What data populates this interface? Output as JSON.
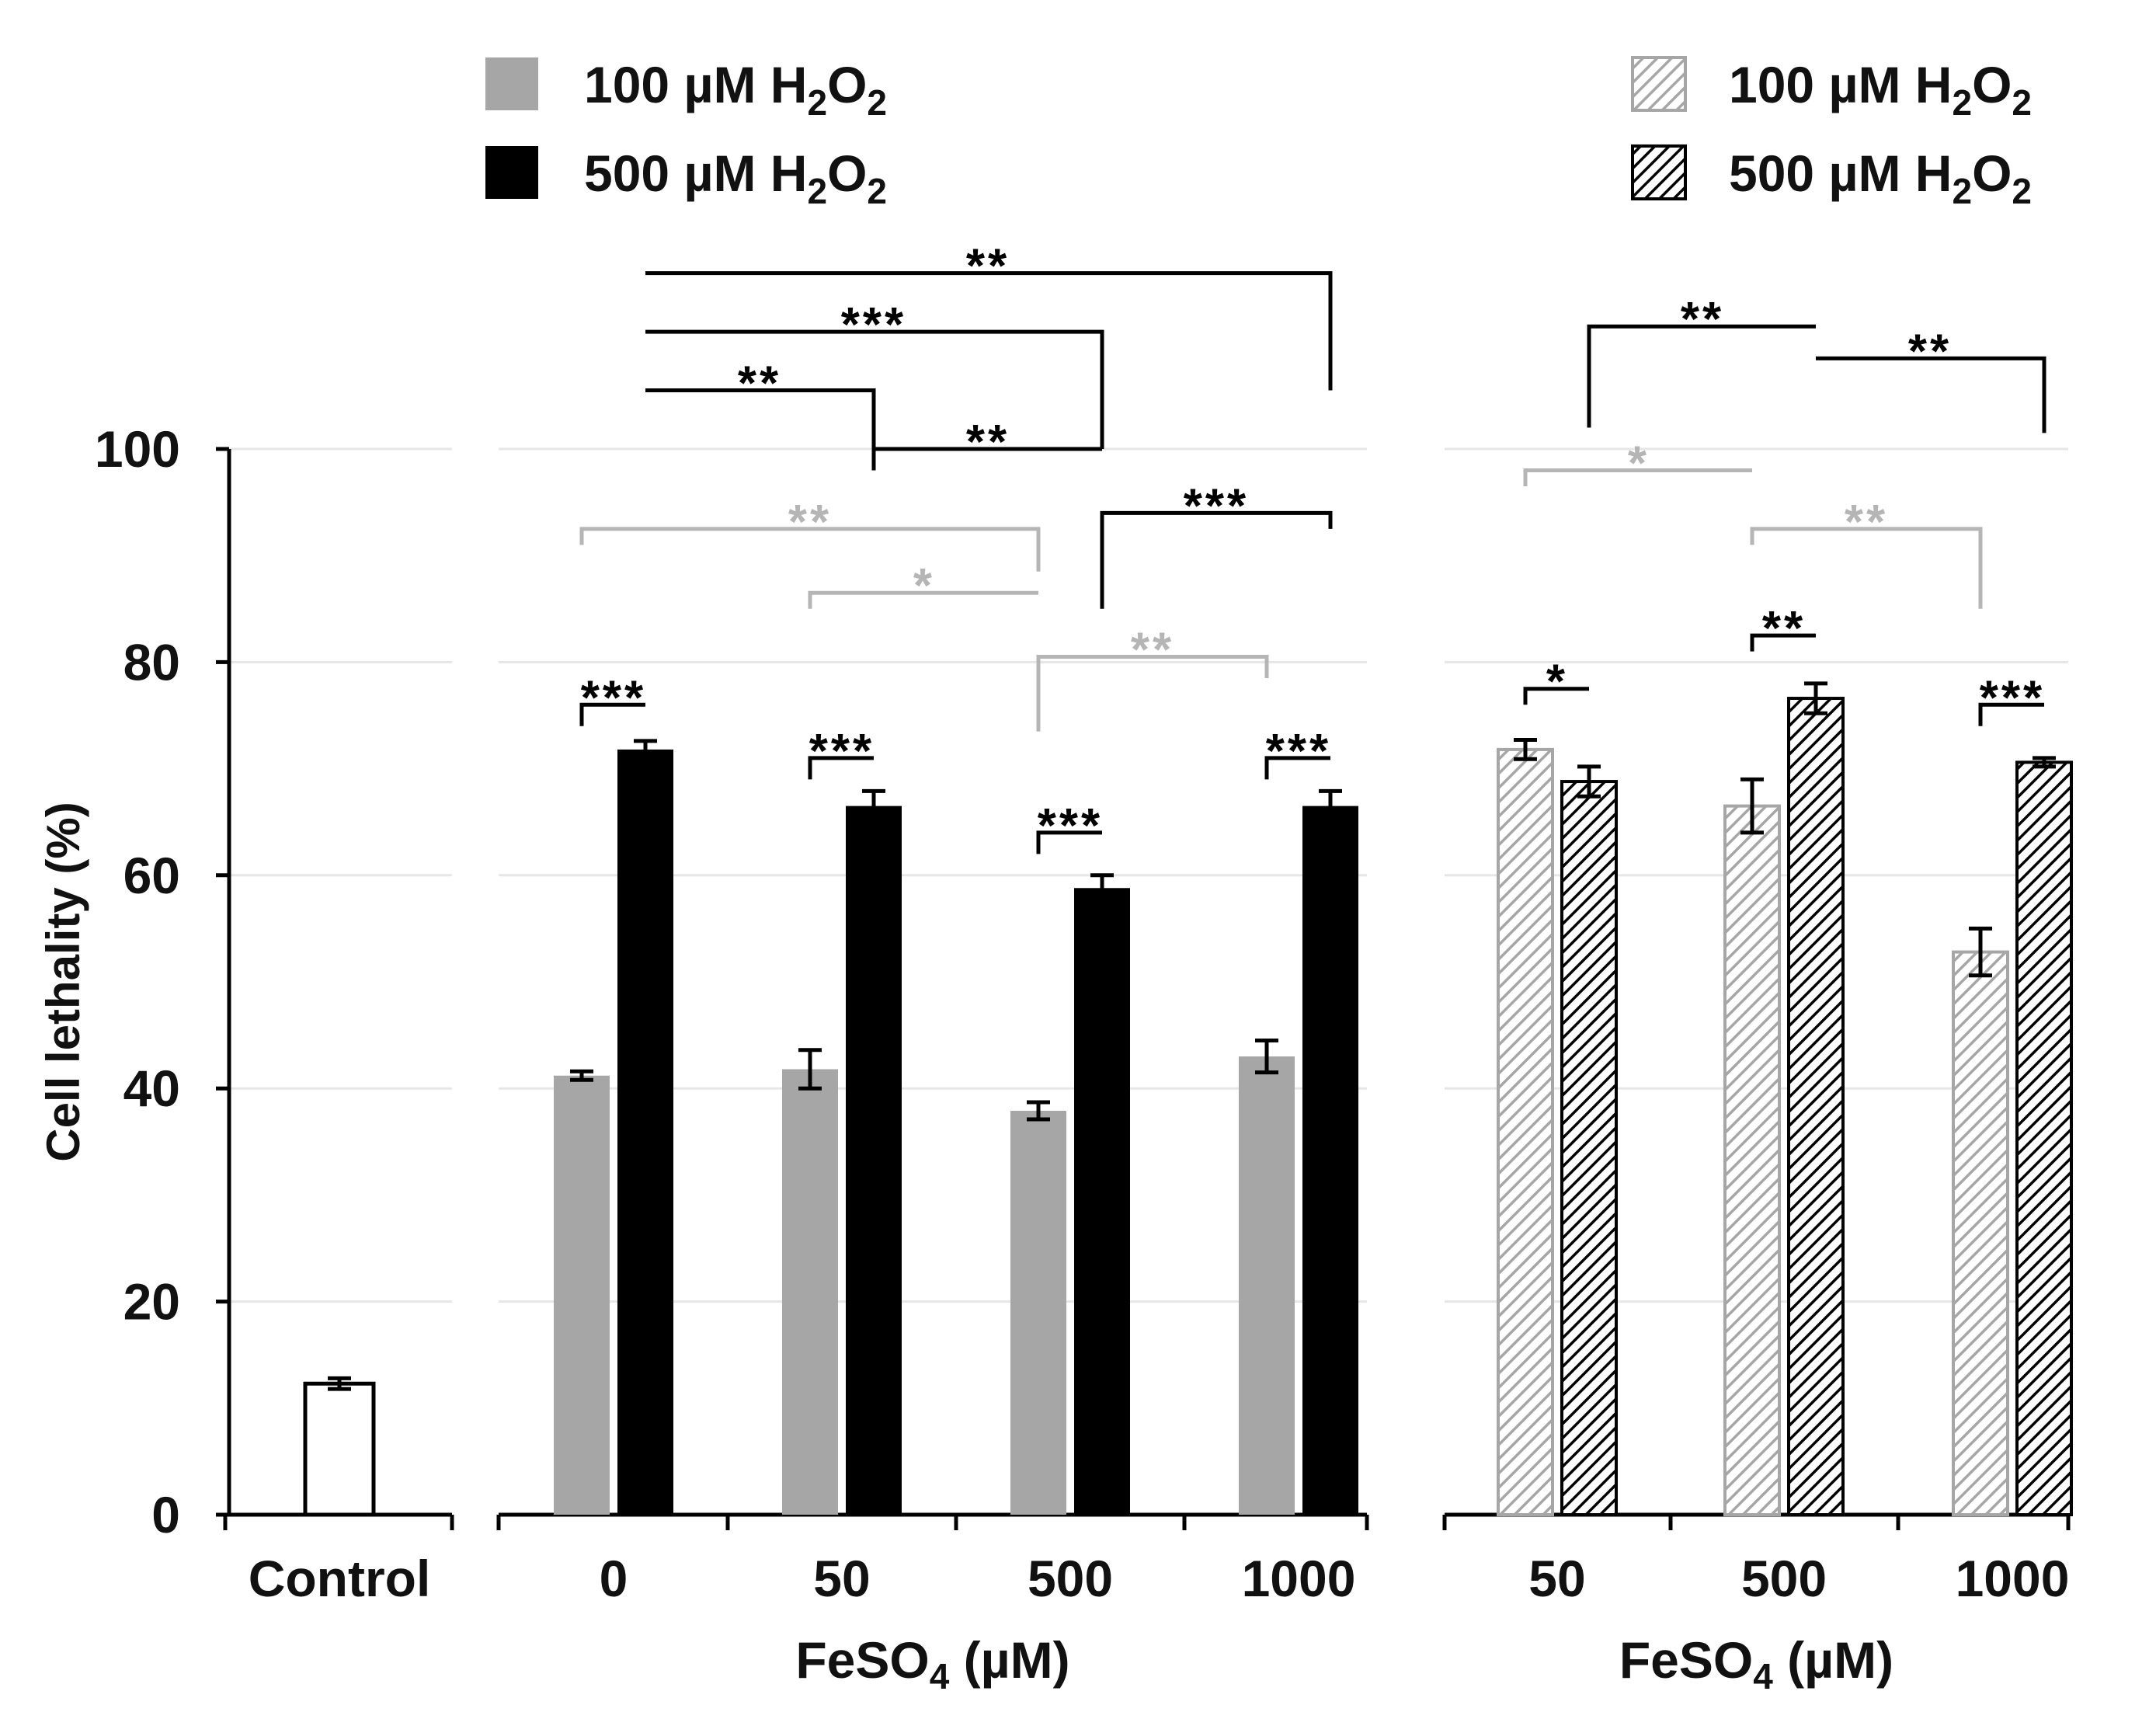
{
  "chart_data": {
    "type": "bar",
    "ylabel": "Cell lethality (%)",
    "ylim": [
      0,
      100
    ],
    "yticks": [
      0,
      20,
      40,
      60,
      80,
      100
    ],
    "grid": true,
    "colors": {
      "h100": "#a6a6a6",
      "h500": "#000000",
      "control": "#ffffff",
      "sig_black": "#000000",
      "sig_gray": "#b5b5b5",
      "grid": "#e6e6e6"
    },
    "legend": {
      "left": [
        {
          "prefix": "100 µM H",
          "sub1": "2",
          "mid": "O",
          "sub2": "2",
          "style": "solid-gray"
        },
        {
          "prefix": "500 µM H",
          "sub1": "2",
          "mid": "O",
          "sub2": "2",
          "style": "solid-black"
        }
      ],
      "right": [
        {
          "prefix": "100 µM H",
          "sub1": "2",
          "mid": "O",
          "sub2": "2",
          "style": "hatched-gray"
        },
        {
          "prefix": "500 µM H",
          "sub1": "2",
          "mid": "O",
          "sub2": "2",
          "style": "hatched-black"
        }
      ]
    },
    "panels": [
      {
        "id": "control",
        "categories": [
          "Control"
        ],
        "xlabel": null,
        "series": [
          {
            "name": "Control",
            "style": "control",
            "values": [
              12.3
            ],
            "errors": [
              0.5
            ]
          }
        ]
      },
      {
        "id": "solid",
        "categories": [
          "0",
          "50",
          "500",
          "1000"
        ],
        "xlabel": {
          "main": "FeSO",
          "sub": "4",
          "tail": " (µM)"
        },
        "series": [
          {
            "name": "100 µM H2O2",
            "style": "solid-gray",
            "values": [
              41.2,
              41.8,
              37.9,
              43.0
            ],
            "errors": [
              0.4,
              1.8,
              0.8,
              1.5
            ]
          },
          {
            "name": "500 µM H2O2",
            "style": "solid-black",
            "values": [
              71.8,
              66.5,
              58.8,
              66.5
            ],
            "errors": [
              0.8,
              1.4,
              1.2,
              1.4
            ]
          }
        ]
      },
      {
        "id": "hatched",
        "categories": [
          "50",
          "500",
          "1000"
        ],
        "xlabel": {
          "main": "FeSO",
          "sub": "4",
          "tail": " (µM)"
        },
        "series": [
          {
            "name": "100 µM H2O2",
            "style": "hatched-gray",
            "values": [
              71.8,
              66.5,
              52.8
            ],
            "errors": [
              0.9,
              2.5,
              2.2
            ]
          },
          {
            "name": "500 µM H2O2",
            "style": "hatched-black",
            "values": [
              68.8,
              76.6,
              70.6
            ],
            "errors": [
              1.4,
              1.4,
              0.4
            ]
          }
        ]
      }
    ],
    "significance": [
      {
        "panel": "solid",
        "from": [
          0,
          1
        ],
        "to": [
          3,
          1
        ],
        "label": "**",
        "color": "black",
        "level": 116.5,
        "drop_right": 105.5
      },
      {
        "panel": "solid",
        "from": [
          0,
          1
        ],
        "to": [
          2,
          1
        ],
        "label": "***",
        "color": "black",
        "level": 111.0,
        "drop_right": 100.0
      },
      {
        "panel": "solid",
        "from": [
          0,
          1
        ],
        "to": [
          1,
          1
        ],
        "label": "**",
        "color": "black",
        "level": 105.5,
        "drop_right": 99.0
      },
      {
        "panel": "solid",
        "from": [
          1,
          1
        ],
        "to": [
          2,
          1
        ],
        "label": "**",
        "color": "black",
        "level": 100.0,
        "drop_left": 98.0
      },
      {
        "panel": "solid",
        "from": [
          2,
          1
        ],
        "to": [
          3,
          1
        ],
        "label": "***",
        "color": "black",
        "level": 94.0,
        "drop_left": 85.0,
        "drop_right": 92.5
      },
      {
        "panel": "solid",
        "from": [
          0,
          0
        ],
        "to": [
          2,
          0
        ],
        "label": "**",
        "color": "gray",
        "level": 92.5,
        "drop_left": 91.0,
        "drop_right": 88.5
      },
      {
        "panel": "solid",
        "from": [
          1,
          0
        ],
        "to": [
          2,
          0
        ],
        "label": "*",
        "color": "gray",
        "level": 86.5,
        "drop_left": 85.0
      },
      {
        "panel": "solid",
        "from": [
          2,
          0
        ],
        "to": [
          3,
          0
        ],
        "label": "**",
        "color": "gray",
        "level": 80.5,
        "drop_left": 73.5,
        "drop_right": 78.5
      },
      {
        "panel": "solid",
        "from": [
          0,
          0
        ],
        "to": [
          0,
          1
        ],
        "label": "***",
        "color": "black",
        "level": 76.0,
        "drop_left": 74.0
      },
      {
        "panel": "solid",
        "from": [
          1,
          0
        ],
        "to": [
          1,
          1
        ],
        "label": "***",
        "color": "black",
        "level": 71.0,
        "drop_left": 69.0
      },
      {
        "panel": "solid",
        "from": [
          2,
          0
        ],
        "to": [
          2,
          1
        ],
        "label": "***",
        "color": "black",
        "level": 64.0,
        "drop_left": 62.0
      },
      {
        "panel": "solid",
        "from": [
          3,
          0
        ],
        "to": [
          3,
          1
        ],
        "label": "***",
        "color": "black",
        "level": 71.0,
        "drop_left": 69.0
      },
      {
        "panel": "hatched",
        "from": [
          0,
          1
        ],
        "to": [
          1,
          1
        ],
        "label": "**",
        "color": "black",
        "level": 111.5,
        "drop_left": 102.0
      },
      {
        "panel": "hatched",
        "from": [
          1,
          1
        ],
        "to": [
          2,
          1
        ],
        "label": "**",
        "color": "black",
        "level": 108.5,
        "drop_right": 101.5
      },
      {
        "panel": "hatched",
        "from": [
          0,
          0
        ],
        "to": [
          1,
          0
        ],
        "label": "*",
        "color": "gray",
        "level": 98.0,
        "drop_left": 96.5
      },
      {
        "panel": "hatched",
        "from": [
          1,
          0
        ],
        "to": [
          2,
          0
        ],
        "label": "**",
        "color": "gray",
        "level": 92.5,
        "drop_left": 91.0,
        "drop_right": 85.0
      },
      {
        "panel": "hatched",
        "from": [
          0,
          0
        ],
        "to": [
          0,
          1
        ],
        "label": "*",
        "color": "black",
        "level": 77.5,
        "drop_left": 76.0
      },
      {
        "panel": "hatched",
        "from": [
          1,
          0
        ],
        "to": [
          1,
          1
        ],
        "label": "**",
        "color": "black",
        "level": 82.5,
        "drop_left": 81.0
      },
      {
        "panel": "hatched",
        "from": [
          2,
          0
        ],
        "to": [
          2,
          1
        ],
        "label": "***",
        "color": "black",
        "level": 76.0,
        "drop_left": 74.0
      }
    ]
  }
}
